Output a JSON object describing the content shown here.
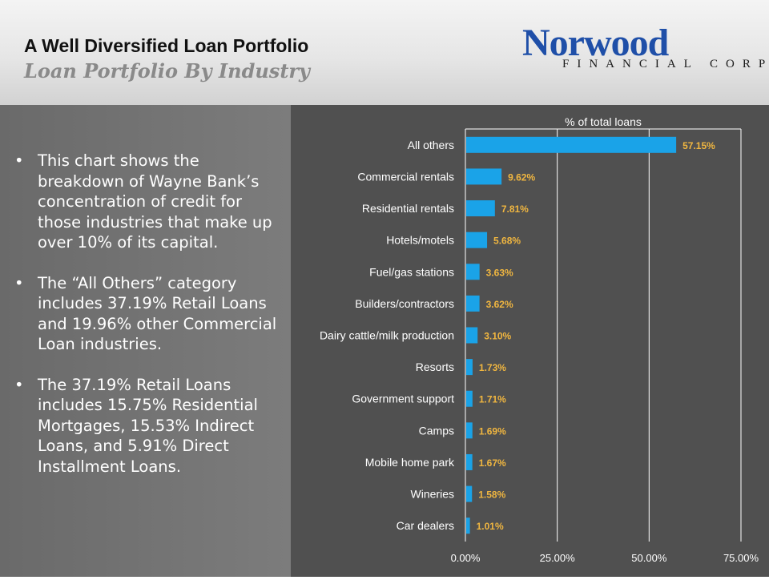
{
  "header": {
    "title": "A Well Diversified Loan Portfolio",
    "subtitle": "Loan Portfolio By Industry"
  },
  "logo": {
    "name": "Norwood",
    "tagline": "FINANCIAL CORP",
    "color": "#1f4fa8"
  },
  "bullets": [
    "This chart shows the breakdown of Wayne Bank’s concentration of credit for those industries that make up over 10% of its capital.",
    "The “All Others” category includes 37.19% Retail Loans and 19.96% other Commercial Loan industries.",
    "The 37.19% Retail Loans includes 15.75% Residential Mortgages, 15.53% Indirect Loans, and 5.91% Direct Installment Loans."
  ],
  "bullet_symbol": "•",
  "chart_data": {
    "type": "bar",
    "orientation": "horizontal",
    "title": "% of total loans",
    "categories": [
      "All others",
      "Commercial rentals",
      "Residential rentals",
      "Hotels/motels",
      "Fuel/gas stations",
      "Builders/contractors",
      "Dairy cattle/milk production",
      "Resorts",
      "Government support",
      "Camps",
      "Mobile home park",
      "Wineries",
      "Car dealers"
    ],
    "values": [
      57.15,
      9.62,
      7.81,
      5.68,
      3.63,
      3.62,
      3.1,
      1.73,
      1.71,
      1.69,
      1.67,
      1.58,
      1.01
    ],
    "value_labels": [
      "57.15%",
      "9.62%",
      "7.81%",
      "5.68%",
      "3.63%",
      "3.62%",
      "3.10%",
      "1.73%",
      "1.71%",
      "1.69%",
      "1.67%",
      "1.58%",
      "1.01%"
    ],
    "xlim": [
      0,
      75
    ],
    "xticks": [
      0,
      25,
      50,
      75
    ],
    "xtick_labels": [
      "0.00%",
      "25.00%",
      "50.00%",
      "75.00%"
    ],
    "grid": true,
    "bar_color": "#1aa3e8",
    "label_color": "#f0b640"
  }
}
